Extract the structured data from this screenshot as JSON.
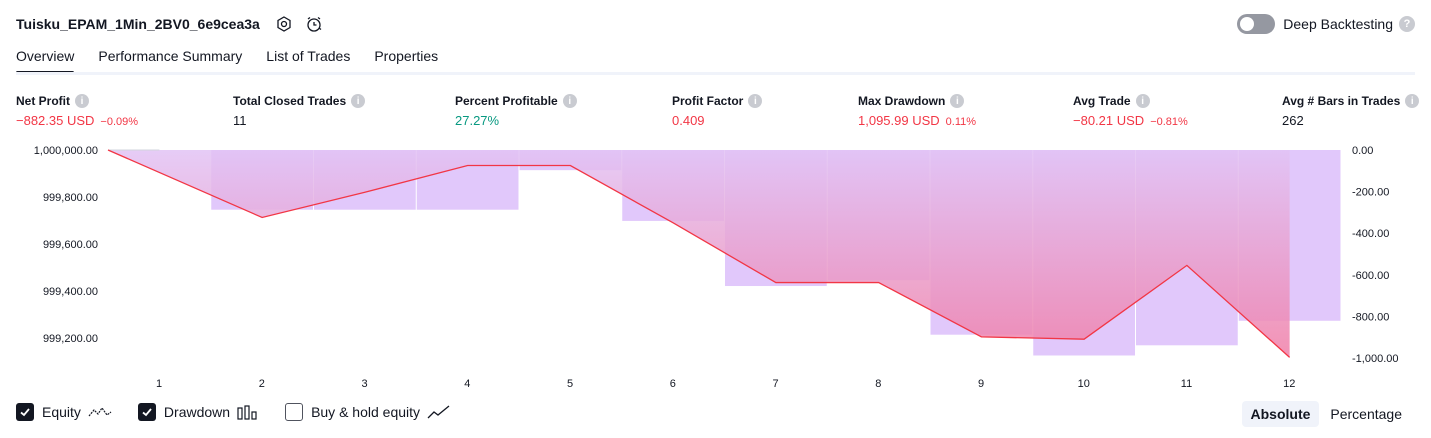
{
  "strategy_title": "Tuisku_EPAM_1Min_2BV0_6e9cea3a",
  "deep_backtesting": {
    "label": "Deep Backtesting",
    "enabled": false,
    "help": "?"
  },
  "tabs": [
    {
      "label": "Overview",
      "active": true
    },
    {
      "label": "Performance Summary",
      "active": false
    },
    {
      "label": "List of Trades",
      "active": false
    },
    {
      "label": "Properties",
      "active": false
    }
  ],
  "metrics": [
    {
      "label": "Net Profit",
      "value": "−882.35 USD",
      "pct": "−0.09%",
      "tone": "neg"
    },
    {
      "label": "Total Closed Trades",
      "value": "11",
      "pct": "",
      "tone": "neu"
    },
    {
      "label": "Percent Profitable",
      "value": "27.27%",
      "pct": "",
      "tone": "pos"
    },
    {
      "label": "Profit Factor",
      "value": "0.409",
      "pct": "",
      "tone": "neg"
    },
    {
      "label": "Max Drawdown",
      "value": "1,095.99 USD",
      "pct": "0.11%",
      "tone": "neg"
    },
    {
      "label": "Avg Trade",
      "value": "−80.21 USD",
      "pct": "−0.81%",
      "tone": "neg"
    },
    {
      "label": "Avg # Bars in Trades",
      "value": "262",
      "pct": "",
      "tone": "neu"
    }
  ],
  "legend": {
    "equity": {
      "label": "Equity",
      "checked": true
    },
    "drawdown": {
      "label": "Drawdown",
      "checked": true
    },
    "buy_hold": {
      "label": "Buy & hold equity",
      "checked": false
    }
  },
  "view_mode": {
    "absolute": "Absolute",
    "percentage": "Percentage",
    "selected": "Absolute"
  },
  "colors": {
    "equity": "#f23645",
    "drawdown_bar": "#e1c8fb",
    "accent": "#131722"
  },
  "chart_data": {
    "type": "line+bar",
    "x": [
      1,
      2,
      3,
      4,
      5,
      6,
      7,
      8,
      9,
      10,
      11,
      12
    ],
    "x_tick_labels": [
      "1",
      "2",
      "3",
      "4",
      "5",
      "6",
      "7",
      "8",
      "9",
      "10",
      "11",
      "12"
    ],
    "series": [
      {
        "name": "Equity",
        "axis": "left",
        "values": [
          1000000.0,
          999713.0,
          999820.0,
          999934.0,
          999934.0,
          999690.0,
          999436.0,
          999436.0,
          999205.0,
          999195.0,
          999509.0,
          999117.65
        ]
      },
      {
        "name": "Drawdown",
        "axis": "right",
        "values": [
          0,
          -287,
          -287,
          -287,
          -97,
          -341,
          -654,
          -626,
          -888,
          -988,
          -939,
          -821
        ]
      }
    ],
    "left_axis": {
      "ticks": [
        "1,000,000.00",
        "999,800.00",
        "999,600.00",
        "999,400.00",
        "999,200.00"
      ],
      "tick_values": [
        1000000,
        999800,
        999600,
        999400,
        999200
      ],
      "range": [
        999115,
        1000000
      ]
    },
    "right_axis": {
      "ticks": [
        "0.00",
        "-200.00",
        "-400.00",
        "-600.00",
        "-800.00",
        "-1,000.00"
      ],
      "tick_values": [
        0,
        -200,
        -400,
        -600,
        -800,
        -1000
      ],
      "range": [
        -1000,
        0
      ]
    }
  }
}
